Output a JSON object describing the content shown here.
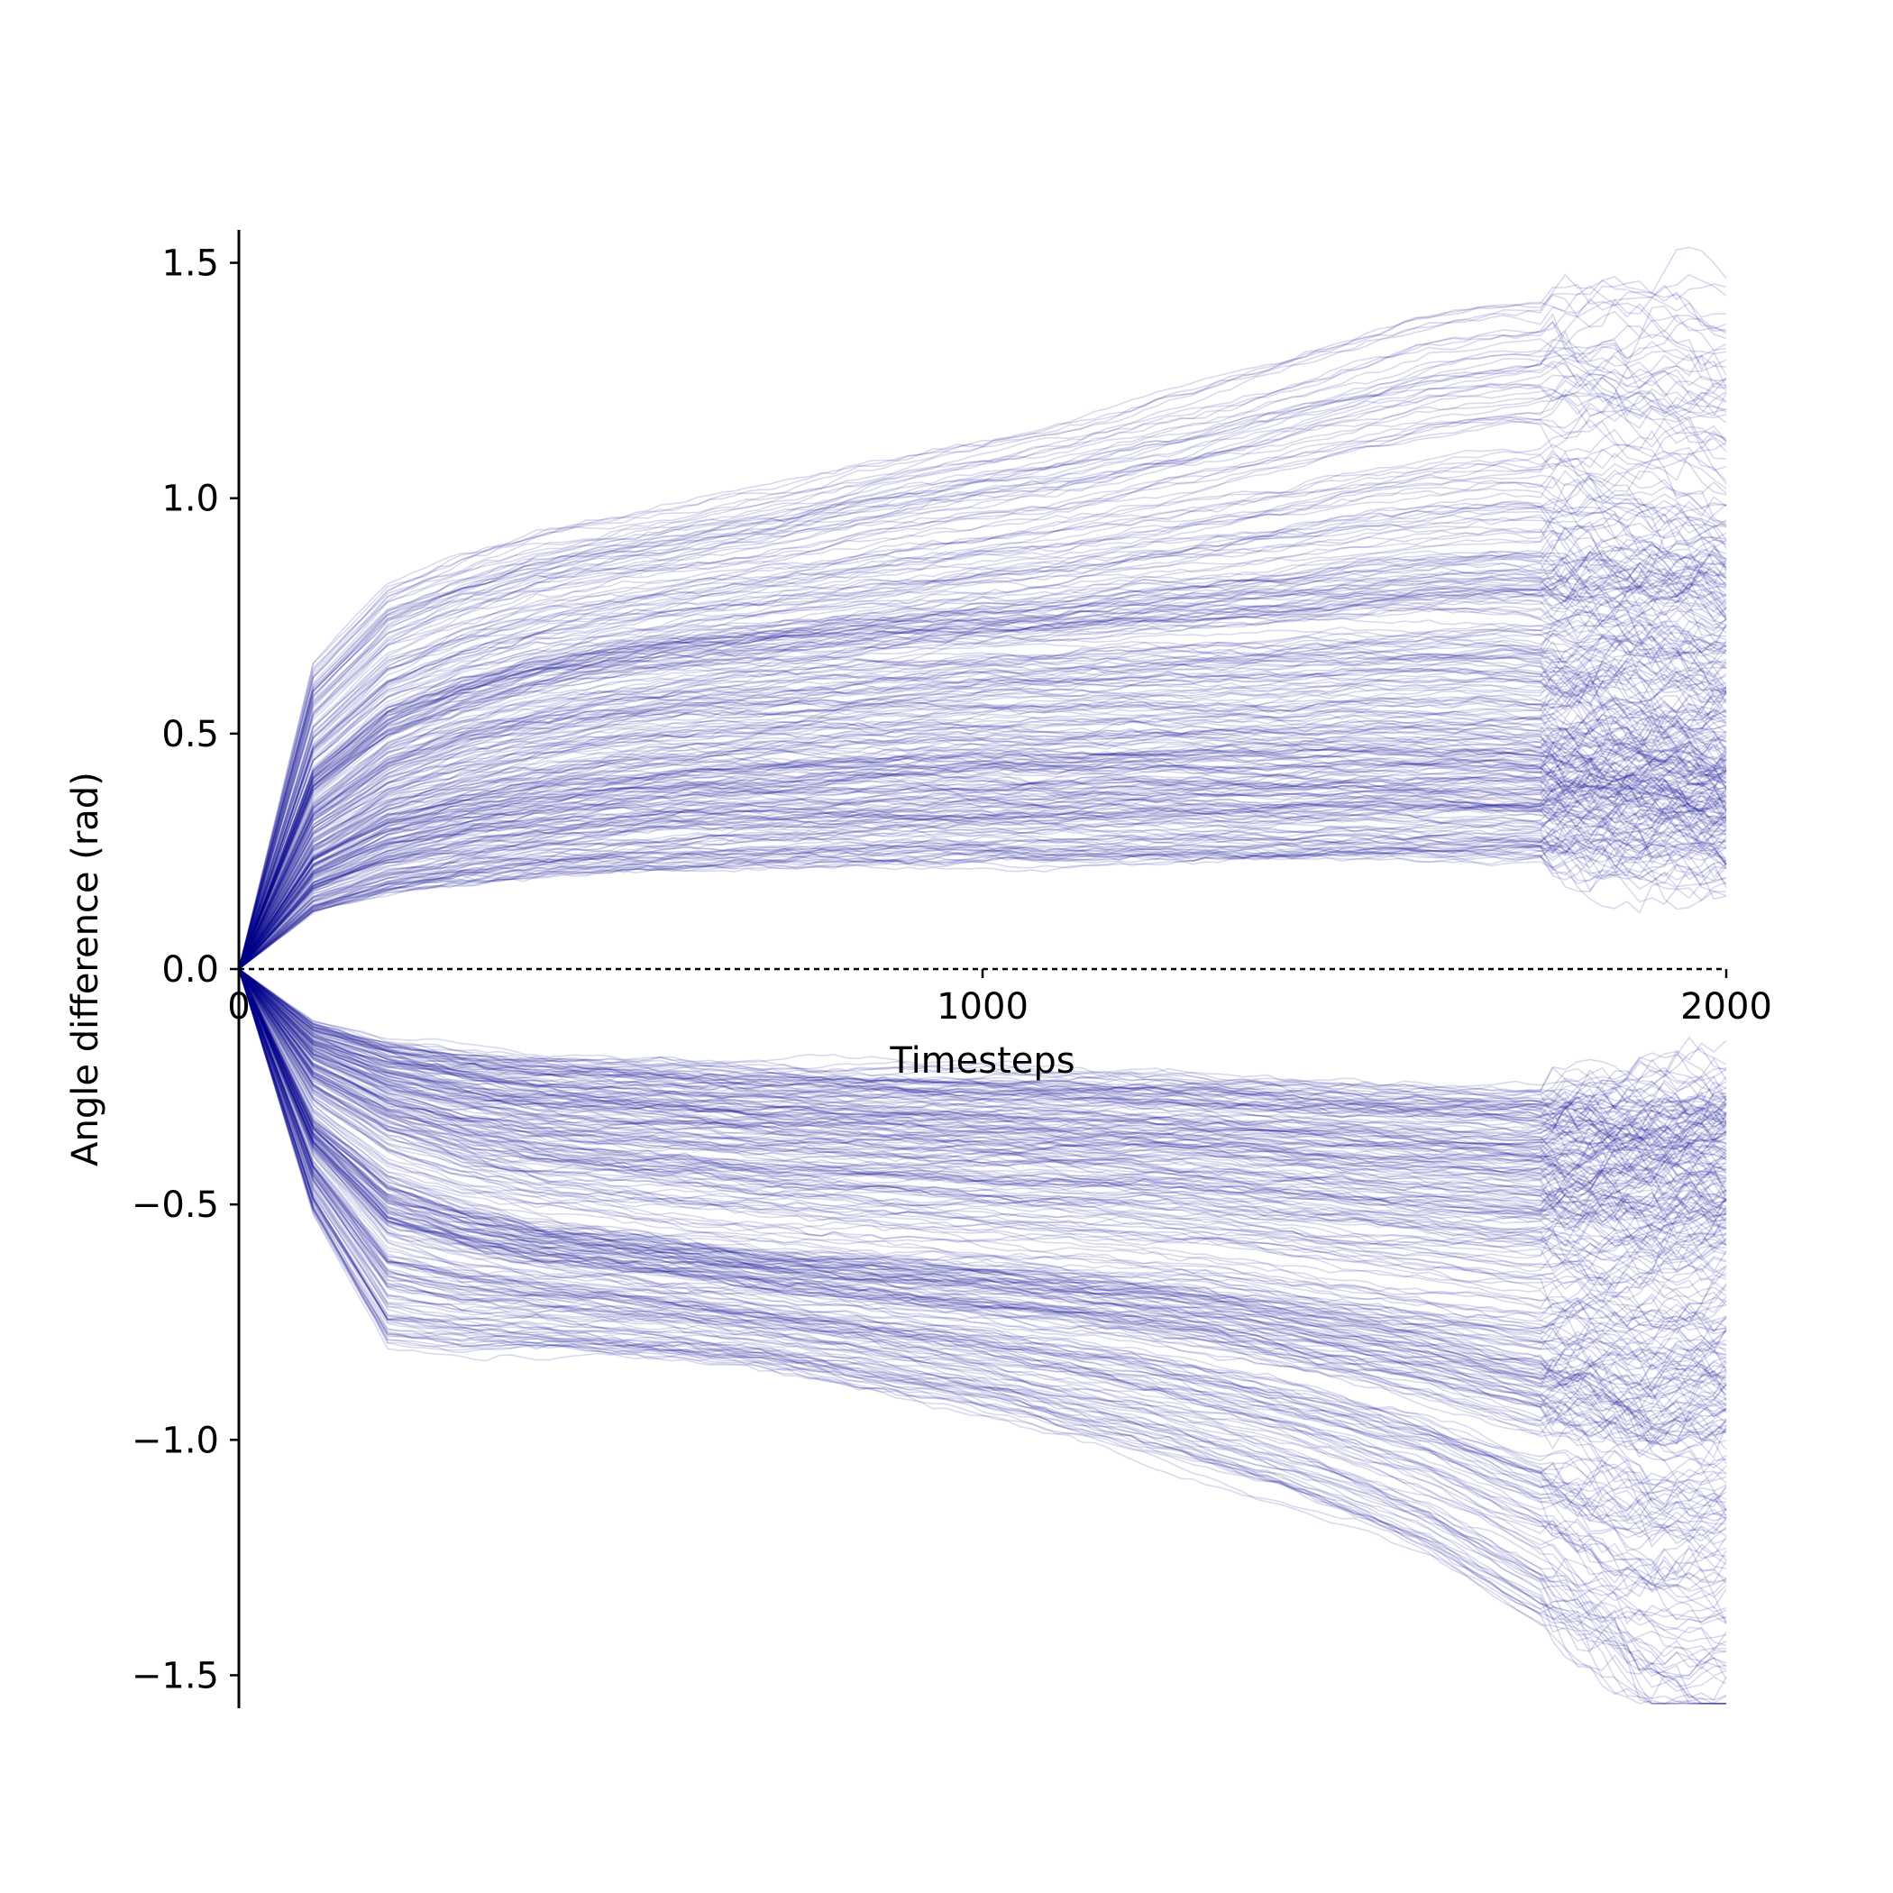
{
  "chart_data": {
    "type": "line",
    "title": "",
    "xlabel": "Timesteps",
    "ylabel": "Angle difference (rad)",
    "xlim": [
      0,
      2000
    ],
    "ylim": [
      -1.57,
      1.57
    ],
    "x_ticks": [
      0,
      1000,
      2000
    ],
    "x_tick_labels": [
      "0",
      "1000",
      "2000"
    ],
    "y_ticks": [
      1.5,
      1.0,
      0.5,
      0.0,
      -0.5,
      -1.0,
      -1.5
    ],
    "y_tick_labels": [
      "1.5",
      "1.0",
      "0.5",
      "0.0",
      "−0.5",
      "−1.0",
      "−1.5"
    ],
    "grid": false,
    "legend": "none",
    "line_color": "#00008b",
    "line_alpha": 0.15,
    "reference_line": {
      "y": 0.0,
      "style": "dashed",
      "color": "#000000"
    },
    "x": [
      0,
      100,
      200,
      300,
      400,
      500,
      600,
      700,
      800,
      900,
      1000,
      1100,
      1200,
      1300,
      1400,
      1500,
      1600,
      1700,
      1800,
      1900,
      2000
    ],
    "series_summary": {
      "upper_envelope": [
        0.0,
        0.65,
        0.82,
        0.88,
        0.93,
        0.96,
        0.99,
        1.02,
        1.06,
        1.1,
        1.13,
        1.16,
        1.2,
        1.25,
        1.3,
        1.35,
        1.4,
        1.43,
        1.44,
        1.45,
        1.43
      ],
      "upper_cluster_mean": [
        0.0,
        0.34,
        0.46,
        0.52,
        0.56,
        0.59,
        0.61,
        0.62,
        0.63,
        0.64,
        0.65,
        0.65,
        0.66,
        0.66,
        0.66,
        0.67,
        0.67,
        0.67,
        0.66,
        0.65,
        0.62
      ],
      "lower_cluster_mean": [
        0.0,
        -0.32,
        -0.44,
        -0.5,
        -0.54,
        -0.56,
        -0.58,
        -0.6,
        -0.61,
        -0.62,
        -0.63,
        -0.64,
        -0.65,
        -0.66,
        -0.68,
        -0.7,
        -0.72,
        -0.74,
        -0.75,
        -0.76,
        -0.74
      ],
      "lower_envelope": [
        0.0,
        -0.52,
        -0.8,
        -0.81,
        -0.81,
        -0.82,
        -0.83,
        -0.85,
        -0.88,
        -0.91,
        -0.94,
        -0.98,
        -1.02,
        -1.07,
        -1.12,
        -1.18,
        -1.25,
        -1.35,
        -1.45,
        -1.55,
        -1.56
      ]
    }
  }
}
